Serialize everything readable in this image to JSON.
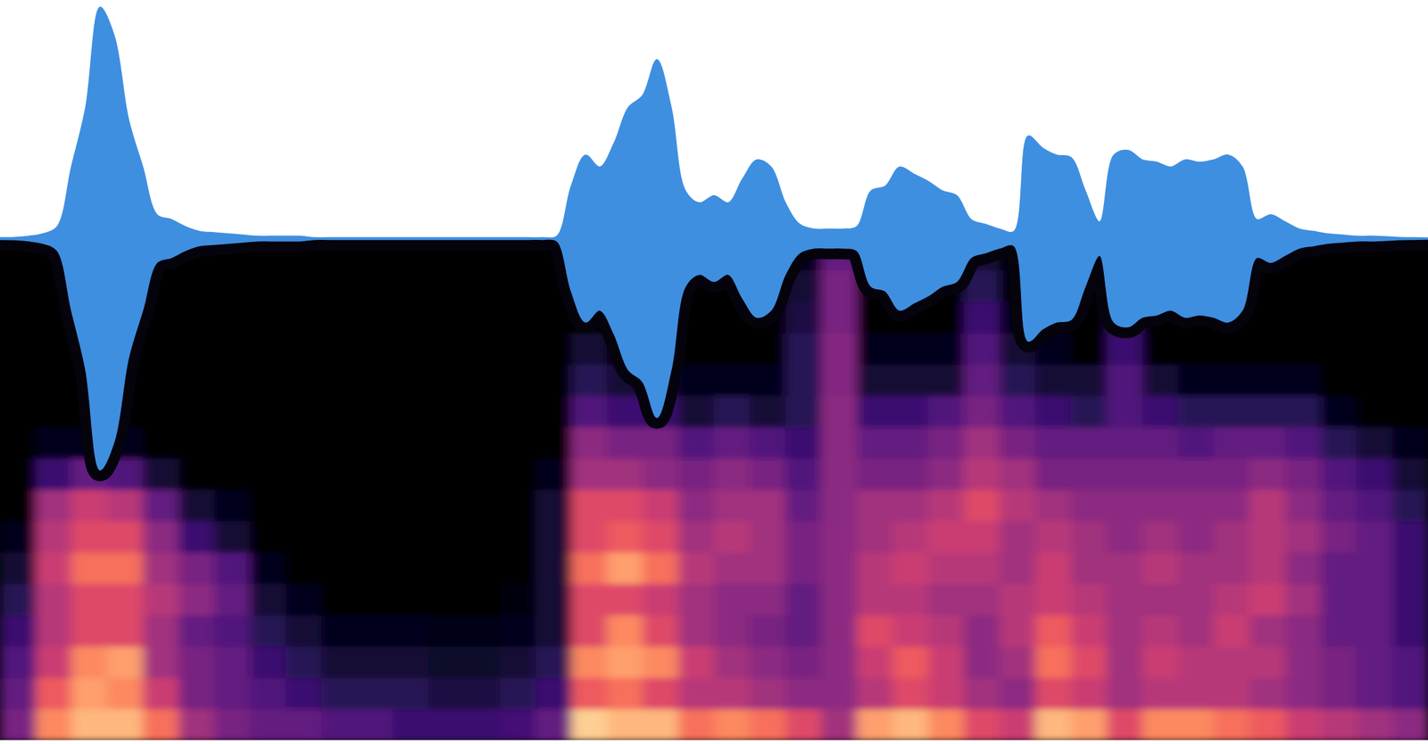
{
  "chart_data": [
    {
      "type": "area",
      "color": "#3f8fe0",
      "tick_labels": false,
      "xlim": [
        0,
        100
      ],
      "ylim": [
        -1,
        1
      ],
      "x": [
        0,
        1,
        2,
        3,
        4,
        5,
        6,
        7,
        8,
        9,
        10,
        11,
        12,
        13,
        14,
        15,
        16,
        17,
        18,
        19,
        20,
        21,
        22,
        23,
        24,
        25,
        26,
        27,
        28,
        29,
        30,
        31,
        32,
        33,
        34,
        35,
        36,
        37,
        38,
        39,
        40,
        41,
        42,
        43,
        44,
        45,
        46,
        47,
        48,
        49,
        50,
        51,
        52,
        53,
        54,
        55,
        56,
        57,
        58,
        59,
        60,
        61,
        62,
        63,
        64,
        65,
        66,
        67,
        68,
        69,
        70,
        71,
        72,
        73,
        74,
        75,
        76,
        77,
        78,
        79,
        80,
        81,
        82,
        83,
        84,
        85,
        86,
        87,
        88,
        89,
        90,
        91,
        92,
        93,
        94,
        95,
        96,
        97,
        98,
        99,
        100
      ],
      "values": [
        0.004,
        0.005,
        0.01,
        0.02,
        0.05,
        0.3,
        0.55,
        0.97,
        0.85,
        0.5,
        0.3,
        0.1,
        0.08,
        0.05,
        0.03,
        0.025,
        0.02,
        0.015,
        0.01,
        0.01,
        0.01,
        0.01,
        0.004,
        0.004,
        0.004,
        0.004,
        0.004,
        0.004,
        0.004,
        0.004,
        0.004,
        0.004,
        0.004,
        0.004,
        0.004,
        0.004,
        0.004,
        0.004,
        0.004,
        0.01,
        0.22,
        0.35,
        0.3,
        0.4,
        0.55,
        0.6,
        0.75,
        0.55,
        0.2,
        0.15,
        0.18,
        0.15,
        0.25,
        0.33,
        0.3,
        0.15,
        0.06,
        0.04,
        0.04,
        0.04,
        0.05,
        0.2,
        0.22,
        0.3,
        0.27,
        0.24,
        0.2,
        0.18,
        0.08,
        0.06,
        0.04,
        0.03,
        0.43,
        0.38,
        0.35,
        0.34,
        0.2,
        0.07,
        0.35,
        0.37,
        0.33,
        0.32,
        0.3,
        0.33,
        0.32,
        0.33,
        0.35,
        0.3,
        0.08,
        0.1,
        0.07,
        0.04,
        0.03,
        0.02,
        0.015,
        0.01,
        0.01,
        0.008,
        0.005,
        0.004,
        0.003
      ]
    },
    {
      "type": "heatmap",
      "tick_labels": false,
      "zlim": [
        0,
        1
      ],
      "cells": [
        [
          0.35,
          0.3,
          0.25,
          0.2,
          0.15,
          0.1,
          0.05,
          0,
          0,
          0,
          0,
          0,
          0,
          0,
          0,
          0
        ],
        [
          0.75,
          0.65,
          0.55,
          0.5,
          0.5,
          0.55,
          0.5,
          0.45,
          0.2,
          0.05,
          0,
          0,
          0,
          0,
          0,
          0
        ],
        [
          0.85,
          0.8,
          0.75,
          0.6,
          0.6,
          0.7,
          0.6,
          0.55,
          0.3,
          0.05,
          0,
          0,
          0,
          0,
          0,
          0
        ],
        [
          0.85,
          0.75,
          0.8,
          0.6,
          0.6,
          0.7,
          0.6,
          0.5,
          0.25,
          0.05,
          0,
          0,
          0,
          0,
          0,
          0
        ],
        [
          0.7,
          0.55,
          0.45,
          0.45,
          0.5,
          0.45,
          0.4,
          0.3,
          0.1,
          0,
          0,
          0,
          0,
          0,
          0,
          0
        ],
        [
          0.45,
          0.35,
          0.35,
          0.3,
          0.4,
          0.35,
          0.2,
          0.1,
          0,
          0,
          0,
          0,
          0,
          0,
          0,
          0
        ],
        [
          0.35,
          0.3,
          0.3,
          0.25,
          0.3,
          0.25,
          0.1,
          0.05,
          0,
          0,
          0,
          0,
          0,
          0,
          0,
          0
        ],
        [
          0.3,
          0.25,
          0.2,
          0.15,
          0.1,
          0.05,
          0,
          0,
          0,
          0,
          0,
          0,
          0,
          0,
          0,
          0
        ],
        [
          0.3,
          0.2,
          0.15,
          0.1,
          0.05,
          0,
          0,
          0,
          0,
          0,
          0,
          0,
          0,
          0,
          0,
          0
        ],
        [
          0.25,
          0.15,
          0.1,
          0.05,
          0,
          0,
          0,
          0,
          0,
          0,
          0,
          0,
          0,
          0,
          0,
          0
        ],
        [
          0.25,
          0.15,
          0.1,
          0.05,
          0,
          0,
          0,
          0,
          0,
          0,
          0,
          0,
          0,
          0,
          0,
          0
        ],
        [
          0.2,
          0.15,
          0.1,
          0.05,
          0,
          0,
          0,
          0,
          0,
          0,
          0,
          0,
          0,
          0,
          0,
          0
        ],
        [
          0.2,
          0.12,
          0.08,
          0.04,
          0,
          0,
          0,
          0,
          0,
          0,
          0,
          0,
          0,
          0,
          0,
          0
        ],
        [
          0.2,
          0.12,
          0.08,
          0.04,
          0,
          0,
          0,
          0,
          0,
          0,
          0,
          0,
          0,
          0,
          0,
          0
        ],
        [
          0.22,
          0.15,
          0.1,
          0.05,
          0.03,
          0,
          0,
          0,
          0,
          0,
          0,
          0,
          0,
          0,
          0,
          0
        ],
        [
          0.3,
          0.2,
          0.15,
          0.1,
          0.1,
          0.1,
          0.1,
          0.1,
          0.05,
          0,
          0,
          0,
          0,
          0,
          0,
          0
        ],
        [
          0.9,
          0.65,
          0.75,
          0.6,
          0.6,
          0.7,
          0.6,
          0.6,
          0.45,
          0.4,
          0.25,
          0.15,
          0.1,
          0,
          0,
          0
        ],
        [
          0.85,
          0.7,
          0.8,
          0.75,
          0.6,
          0.8,
          0.65,
          0.6,
          0.45,
          0.35,
          0.2,
          0.1,
          0,
          0,
          0,
          0
        ],
        [
          0.85,
          0.6,
          0.75,
          0.6,
          0.55,
          0.7,
          0.6,
          0.55,
          0.4,
          0.35,
          0.2,
          0.1,
          0,
          0,
          0,
          0
        ],
        [
          0.7,
          0.5,
          0.55,
          0.45,
          0.45,
          0.5,
          0.45,
          0.4,
          0.35,
          0.25,
          0.1,
          0.05,
          0,
          0,
          0,
          0
        ],
        [
          0.75,
          0.5,
          0.45,
          0.4,
          0.4,
          0.45,
          0.5,
          0.45,
          0.4,
          0.3,
          0.15,
          0.05,
          0,
          0,
          0,
          0
        ],
        [
          0.7,
          0.45,
          0.4,
          0.35,
          0.4,
          0.45,
          0.45,
          0.45,
          0.35,
          0.25,
          0.1,
          0.05,
          0,
          0,
          0,
          0
        ],
        [
          0.6,
          0.4,
          0.35,
          0.3,
          0.3,
          0.35,
          0.35,
          0.3,
          0.25,
          0.2,
          0.15,
          0.15,
          0.15,
          0.12,
          0.1,
          0.05
        ],
        [
          0.45,
          0.4,
          0.4,
          0.4,
          0.4,
          0.4,
          0.4,
          0.4,
          0.4,
          0.4,
          0.4,
          0.38,
          0.38,
          0.35,
          0.35,
          0.3
        ],
        [
          0.8,
          0.5,
          0.55,
          0.6,
          0.5,
          0.5,
          0.45,
          0.45,
          0.35,
          0.3,
          0.2,
          0.1,
          0.05,
          0,
          0,
          0
        ],
        [
          0.85,
          0.6,
          0.65,
          0.55,
          0.5,
          0.55,
          0.5,
          0.45,
          0.35,
          0.3,
          0.2,
          0.1,
          0.05,
          0,
          0,
          0
        ],
        [
          0.75,
          0.55,
          0.55,
          0.5,
          0.45,
          0.5,
          0.55,
          0.5,
          0.4,
          0.35,
          0.25,
          0.1,
          0.05,
          0,
          0,
          0
        ],
        [
          0.6,
          0.45,
          0.4,
          0.4,
          0.45,
          0.5,
          0.55,
          0.6,
          0.5,
          0.45,
          0.35,
          0.3,
          0.25,
          0.2,
          0.15,
          0.1
        ],
        [
          0.55,
          0.4,
          0.45,
          0.5,
          0.5,
          0.45,
          0.45,
          0.5,
          0.45,
          0.35,
          0.25,
          0.15,
          0.1,
          0.05,
          0,
          0
        ],
        [
          0.85,
          0.6,
          0.7,
          0.65,
          0.55,
          0.55,
          0.5,
          0.45,
          0.35,
          0.3,
          0.2,
          0.1,
          0.05,
          0,
          0,
          0
        ],
        [
          0.8,
          0.55,
          0.6,
          0.55,
          0.5,
          0.45,
          0.45,
          0.4,
          0.35,
          0.3,
          0.15,
          0.1,
          0,
          0,
          0,
          0
        ],
        [
          0.6,
          0.45,
          0.45,
          0.45,
          0.45,
          0.45,
          0.4,
          0.4,
          0.35,
          0.3,
          0.25,
          0.25,
          0.2,
          0.15,
          0.1,
          0.05
        ],
        [
          0.75,
          0.5,
          0.55,
          0.5,
          0.45,
          0.5,
          0.45,
          0.4,
          0.35,
          0.3,
          0.2,
          0.1,
          0,
          0,
          0,
          0
        ],
        [
          0.75,
          0.5,
          0.5,
          0.45,
          0.45,
          0.45,
          0.4,
          0.4,
          0.35,
          0.25,
          0.15,
          0.05,
          0,
          0,
          0,
          0
        ],
        [
          0.7,
          0.5,
          0.5,
          0.55,
          0.5,
          0.45,
          0.45,
          0.4,
          0.35,
          0.3,
          0.15,
          0.05,
          0,
          0,
          0,
          0
        ],
        [
          0.65,
          0.45,
          0.5,
          0.45,
          0.55,
          0.5,
          0.5,
          0.5,
          0.4,
          0.3,
          0.15,
          0.05,
          0,
          0,
          0,
          0
        ],
        [
          0.55,
          0.4,
          0.4,
          0.4,
          0.45,
          0.4,
          0.45,
          0.4,
          0.35,
          0.25,
          0.15,
          0.05,
          0,
          0,
          0,
          0
        ],
        [
          0.5,
          0.35,
          0.35,
          0.3,
          0.3,
          0.3,
          0.35,
          0.3,
          0.25,
          0.15,
          0.05,
          0,
          0,
          0,
          0,
          0
        ],
        [
          0.45,
          0.3,
          0.3,
          0.3,
          0.3,
          0.3,
          0.3,
          0.25,
          0.2,
          0.1,
          0,
          0,
          0,
          0,
          0,
          0
        ],
        [
          0.4,
          0.25,
          0.25,
          0.2,
          0.2,
          0.2,
          0.2,
          0.15,
          0.1,
          0.05,
          0,
          0,
          0,
          0,
          0,
          0
        ]
      ]
    }
  ]
}
